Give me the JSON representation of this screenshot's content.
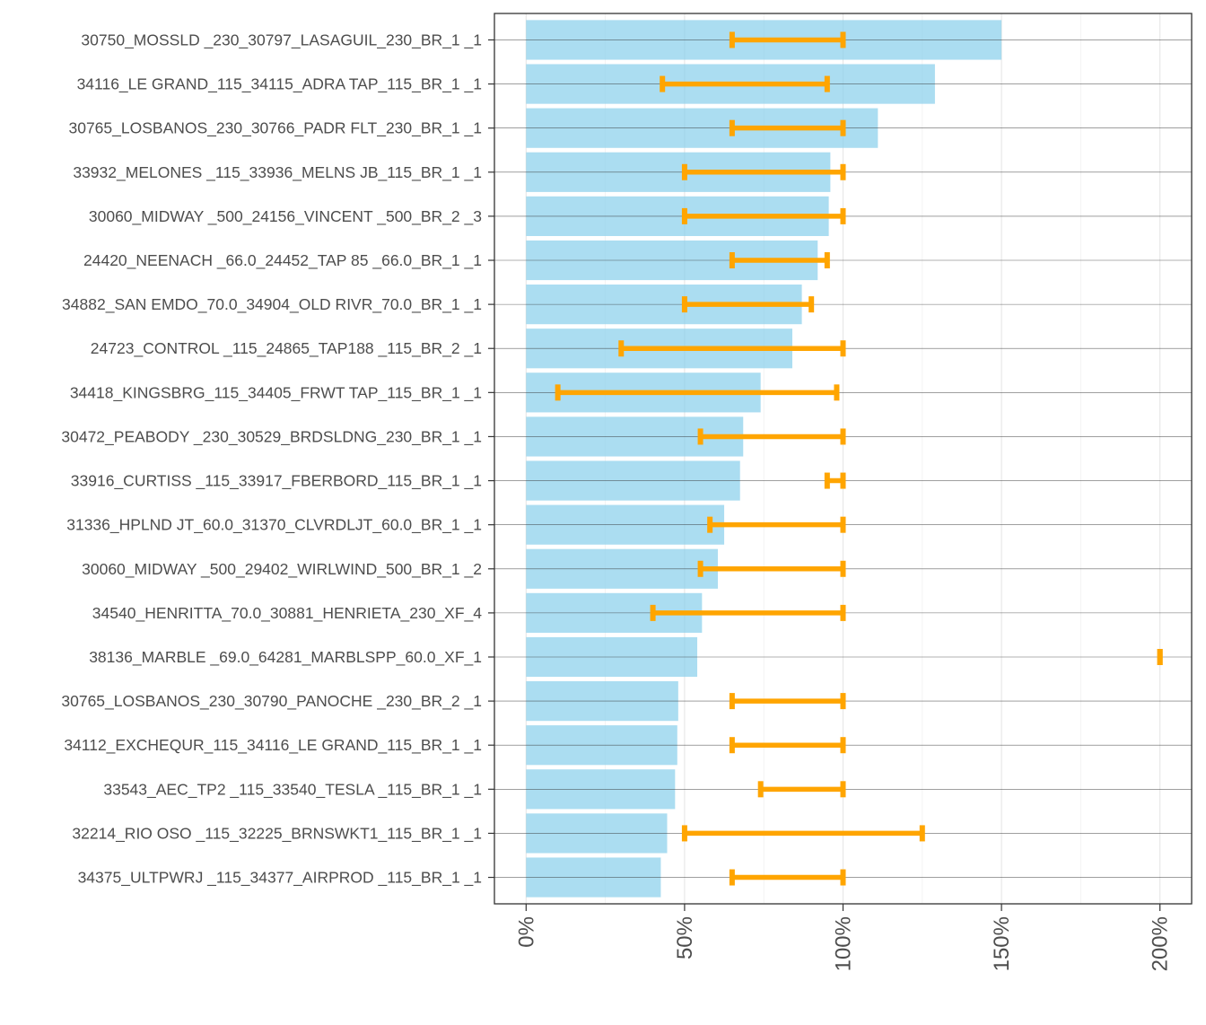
{
  "chart_data": {
    "type": "bar",
    "orientation": "horizontal",
    "title": "",
    "xlabel": "",
    "ylabel": "",
    "xlim": [
      -0.1,
      2.1
    ],
    "x_ticks": [
      0,
      0.5,
      1.0,
      1.5,
      2.0
    ],
    "x_tick_labels": [
      "0%",
      "50%",
      "100%",
      "150%",
      "200%"
    ],
    "grid": true,
    "bar_color": "#87ceeb",
    "range_color": "#ffa500",
    "series": [
      {
        "name": "bar",
        "type": "bar"
      },
      {
        "name": "range",
        "type": "errorbar"
      }
    ],
    "categories": [
      "30750_MOSSLD  _230_30797_LASAGUIL_230_BR_1 _1",
      "34116_LE GRAND_115_34115_ADRA TAP_115_BR_1 _1",
      "30765_LOSBANOS_230_30766_PADR FLT_230_BR_1 _1",
      "33932_MELONES _115_33936_MELNS JB_115_BR_1 _1",
      "30060_MIDWAY  _500_24156_VINCENT _500_BR_2 _3",
      "24420_NEENACH _66.0_24452_TAP 85  _66.0_BR_1 _1",
      "34882_SAN EMDO_70.0_34904_OLD RIVR_70.0_BR_1 _1",
      "24723_CONTROL _115_24865_TAP188  _115_BR_2 _1",
      "34418_KINGSBRG_115_34405_FRWT TAP_115_BR_1 _1",
      "30472_PEABODY _230_30529_BRDSLDNG_230_BR_1 _1",
      "33916_CURTISS _115_33917_FBERBORD_115_BR_1 _1",
      "31336_HPLND JT_60.0_31370_CLVRDLJT_60.0_BR_1 _1",
      "30060_MIDWAY  _500_29402_WIRLWIND_500_BR_1 _2",
      "34540_HENRITTA_70.0_30881_HENRIETA_230_XF_4",
      "38136_MARBLE  _69.0_64281_MARBLSPP_60.0_XF_1",
      "30765_LOSBANOS_230_30790_PANOCHE _230_BR_2 _1",
      "34112_EXCHEQUR_115_34116_LE GRAND_115_BR_1 _1",
      "33543_AEC_TP2 _115_33540_TESLA   _115_BR_1 _1",
      "32214_RIO OSO _115_32225_BRNSWKT1_115_BR_1 _1",
      "34375_ULTPWRJ _115_34377_AIRPROD _115_BR_1 _1"
    ],
    "values": [
      1.5,
      1.29,
      1.11,
      0.96,
      0.955,
      0.92,
      0.87,
      0.84,
      0.74,
      0.685,
      0.675,
      0.625,
      0.605,
      0.555,
      0.54,
      0.48,
      0.477,
      0.47,
      0.445,
      0.425
    ],
    "range_low": [
      0.65,
      0.43,
      0.65,
      0.5,
      0.5,
      0.65,
      0.5,
      0.3,
      0.1,
      0.55,
      0.95,
      0.58,
      0.55,
      0.4,
      2.0,
      0.65,
      0.65,
      0.74,
      0.5,
      0.65
    ],
    "range_high": [
      1.0,
      0.95,
      1.0,
      1.0,
      1.0,
      0.95,
      0.9,
      1.0,
      0.98,
      1.0,
      1.0,
      1.0,
      1.0,
      1.0,
      2.0,
      1.0,
      1.0,
      1.0,
      1.25,
      1.0
    ]
  }
}
